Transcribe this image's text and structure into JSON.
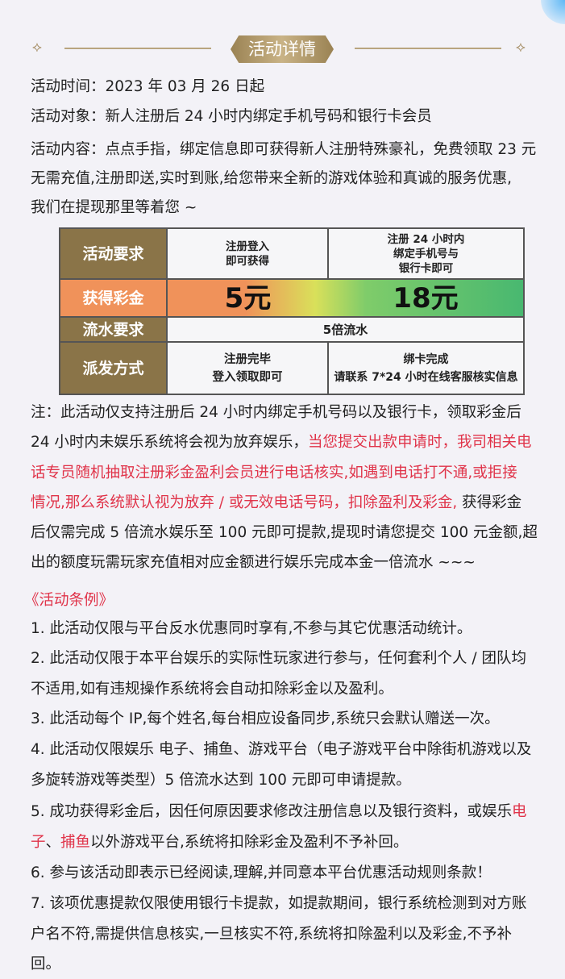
{
  "header": {
    "title": "活动详情"
  },
  "intro_lines": [
    [
      {
        "t": "活动时间：2023 年 03 月 26 日起"
      }
    ],
    [
      {
        "t": "活动对象：新人注册后 24 小时内绑定手机号码和银行卡会员"
      }
    ],
    [
      {
        "t": "活动内容：点点手指，绑定信息即可获得新人注册特殊豪礼，免费领取 23 元"
      }
    ],
    [
      {
        "t": "无需充值,注册即送,实时到账,给您带来全新的游戏体验和真诚的服务优惠,"
      }
    ],
    [
      {
        "t": "我们在提现那里等着您 ~"
      }
    ]
  ],
  "table": {
    "row_labels": [
      "活动要求",
      "获得彩金",
      "流水要求",
      "派发方式"
    ],
    "requirement": [
      "注册登入\n即可获得",
      "注册 24 小时内\n绑定手机号与\n银行卡即可"
    ],
    "bonus": [
      "5元",
      "18元"
    ],
    "turnover": "5倍流水",
    "distribution": [
      "注册完毕\n登入领取即可",
      "绑卡完成\n请联系 7*24 小时在线客服核实信息"
    ]
  },
  "note_lines": [
    [
      {
        "t": "注：此活动仅支持注册后 24 小时内绑定手机号码以及银行卡，领取彩金后"
      }
    ],
    [
      {
        "t": "24 小时内未娱乐系统将会视为放弃娱乐，"
      },
      {
        "t": "当您提交出款申请时，我司相关电",
        "red": true
      }
    ],
    [
      {
        "t": "话专员随机抽取注册彩金盈利会员进行电话核实,如遇到电话打不通,或拒接",
        "red": true
      }
    ],
    [
      {
        "t": "情况,那么系统默认视为放弃 / 或无效电话号码，扣除盈利及彩金,",
        "red": true
      },
      {
        "t": " 获得彩金"
      }
    ],
    [
      {
        "t": "后仅需完成 5 倍流水娱乐至 100 元即可提款,提现时请您提交 100 元金额,超"
      }
    ],
    [
      {
        "t": "出的额度玩需玩家充值相对应金额进行娱乐完成本金一倍流水 ~~~"
      }
    ]
  ],
  "rules_title": "《活动条例》",
  "rules_lines": [
    [
      {
        "t": "1. 此活动仅限与平台反水优惠同时享有,不参与其它优惠活动统计。"
      }
    ],
    [
      {
        "t": "2. 此活动仅限于本平台娱乐的实际性玩家进行参与，任何套利个人 / 团队均"
      }
    ],
    [
      {
        "t": "不适用,如有违规操作系统将会自动扣除彩金以及盈利。"
      }
    ],
    [
      {
        "t": "3. 此活动每个 IP,每个姓名,每台相应设备同步,系统只会默认赠送一次。"
      }
    ],
    [
      {
        "t": "4. 此活动仅限娱乐 电子、捕鱼、游戏平台（电子游戏平台中除街机游戏以及"
      }
    ],
    [
      {
        "t": "多旋转游戏等类型）5 倍流水达到 100 元即可申请提款。"
      }
    ],
    [
      {
        "t": "5. 成功获得彩金后，因任何原因要求修改注册信息以及银行资料，或娱乐"
      },
      {
        "t": "电",
        "red": true
      }
    ],
    [
      {
        "t": "子",
        "red": true
      },
      {
        "t": "、"
      },
      {
        "t": "捕鱼",
        "red": true
      },
      {
        "t": "以外游戏平台,系统将扣除彩金及盈利不予补回。"
      }
    ],
    [
      {
        "t": "6. 参与该活动即表示已经阅读,理解,并同意本平台优惠活动规则条款！"
      }
    ],
    [
      {
        "t": "7. 该项优惠提款仅限使用银行卡提款，如提款期间，银行系统检测到对方账"
      }
    ],
    [
      {
        "t": "户名不符,需提供信息核实,一旦核实不符,系统将扣除盈利以及彩金,不予补"
      }
    ],
    [
      {
        "t": "回。"
      }
    ]
  ],
  "colors": {
    "accent_red": "#e0344a",
    "gold": "#8a7448",
    "background": "#f3f2f7"
  }
}
